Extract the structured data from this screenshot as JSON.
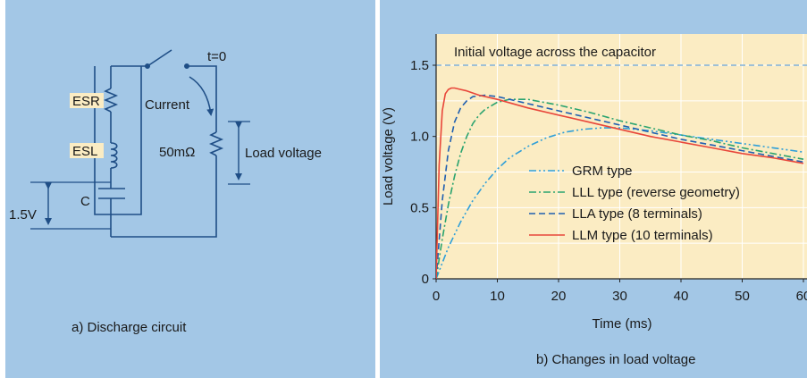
{
  "colors": {
    "background": "#a3c7e6",
    "plot_background": "#fbecc3",
    "plot_grid": "#ffffff",
    "wire": "#1f4e86",
    "label_box": "#fbecc3",
    "text": "#1a1a1a",
    "initial_line": "#7fb2dc"
  },
  "circuit": {
    "caption": "a) Discharge circuit",
    "switch_label": "t=0",
    "esr_label": "ESR",
    "esl_label": "ESL",
    "cap_label": "C",
    "current_label": "Current",
    "resistor_label": "50mΩ",
    "load_voltage_label": "Load voltage",
    "voltage_label": "1.5V"
  },
  "chart_caption": "b) Changes in load voltage",
  "chart_data": {
    "type": "line",
    "title": "",
    "xlabel": "Time (ms)",
    "ylabel": "Load voltage (V)",
    "xlim": [
      0,
      60
    ],
    "ylim": [
      0,
      1.7
    ],
    "xticks": [
      0,
      10,
      20,
      30,
      40,
      50,
      60
    ],
    "xtick_labels": [
      "0",
      "10",
      "20",
      "30",
      "40",
      "50",
      "60"
    ],
    "yticks": [
      0,
      0.5,
      1.0,
      1.5
    ],
    "ytick_labels": [
      "0",
      "0.5",
      "1.0",
      "1.5"
    ],
    "grid": true,
    "legend_position": "lower-right",
    "annotation": "Initial voltage across the capacitor",
    "initial_voltage": 1.5,
    "series": [
      {
        "name": "GRM type",
        "style": "dashdotdot",
        "color": "#2f9fd8",
        "x": [
          0,
          2,
          4,
          6,
          8,
          10,
          12,
          15,
          18,
          21,
          24,
          27,
          30,
          35,
          40,
          45,
          50,
          55,
          60
        ],
        "y": [
          0,
          0.22,
          0.4,
          0.55,
          0.67,
          0.77,
          0.85,
          0.93,
          0.99,
          1.03,
          1.05,
          1.06,
          1.06,
          1.04,
          1.01,
          0.98,
          0.95,
          0.92,
          0.89
        ]
      },
      {
        "name": "LLL type (reverse geometry)",
        "style": "dashdot",
        "color": "#2aa36f",
        "x": [
          0,
          1,
          2,
          3,
          4,
          5,
          6,
          7,
          8,
          10,
          12,
          15,
          20,
          25,
          30,
          35,
          40,
          45,
          50,
          55,
          60
        ],
        "y": [
          0,
          0.28,
          0.52,
          0.72,
          0.88,
          1.0,
          1.09,
          1.15,
          1.19,
          1.24,
          1.26,
          1.26,
          1.22,
          1.17,
          1.11,
          1.06,
          1.01,
          0.97,
          0.92,
          0.88,
          0.84
        ]
      },
      {
        "name": "LLA type (8 terminals)",
        "style": "dash",
        "color": "#1f5fb0",
        "x": [
          0,
          1,
          2,
          3,
          4,
          5,
          6,
          8,
          10,
          12,
          15,
          20,
          25,
          30,
          35,
          40,
          45,
          50,
          55,
          60
        ],
        "y": [
          0,
          0.55,
          0.9,
          1.1,
          1.2,
          1.25,
          1.28,
          1.29,
          1.28,
          1.26,
          1.23,
          1.18,
          1.13,
          1.08,
          1.03,
          0.98,
          0.94,
          0.9,
          0.86,
          0.82
        ]
      },
      {
        "name": "LLM type (10 terminals)",
        "style": "solid",
        "color": "#e8463a",
        "x": [
          0,
          0.5,
          1,
          1.5,
          2,
          2.5,
          3,
          4,
          5,
          7,
          10,
          15,
          20,
          25,
          30,
          35,
          40,
          45,
          50,
          55,
          60
        ],
        "y": [
          0,
          0.8,
          1.18,
          1.3,
          1.33,
          1.34,
          1.34,
          1.33,
          1.32,
          1.29,
          1.26,
          1.2,
          1.15,
          1.1,
          1.05,
          1.0,
          0.96,
          0.92,
          0.88,
          0.85,
          0.81
        ]
      }
    ]
  }
}
